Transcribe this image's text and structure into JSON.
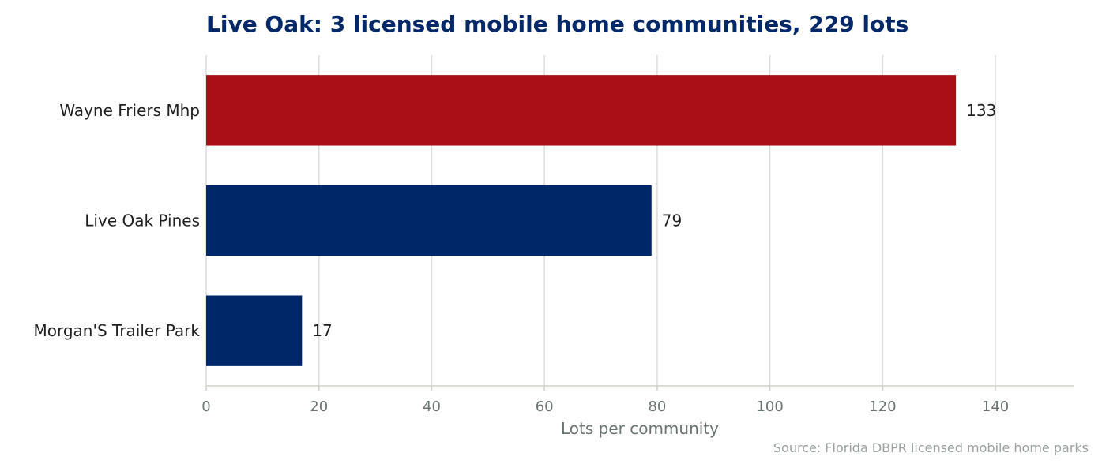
{
  "chart_data": {
    "type": "bar",
    "orientation": "horizontal",
    "title": "Live Oak: 3 licensed mobile home communities, 229 lots",
    "xlabel": "Lots per community",
    "ylabel": "",
    "categories": [
      "Wayne Friers Mhp",
      "Live Oak Pines",
      "Morgan'S Trailer Park"
    ],
    "values": [
      133,
      79,
      17
    ],
    "value_labels": [
      "133",
      "79",
      "17"
    ],
    "xlim": [
      0,
      154
    ],
    "xticks": [
      0,
      20,
      40,
      60,
      80,
      100,
      120,
      140
    ],
    "xtick_labels": [
      "0",
      "20",
      "40",
      "60",
      "80",
      "100",
      "120",
      "140"
    ],
    "grid": "vertical",
    "highlight_index": 0,
    "colors": {
      "highlight": "#a81015",
      "bar": "#002868",
      "title": "#002868",
      "grid": "#dcdcdc",
      "axis": "#d0d0c8"
    },
    "source": "Source: Florida DBPR licensed mobile home parks"
  }
}
